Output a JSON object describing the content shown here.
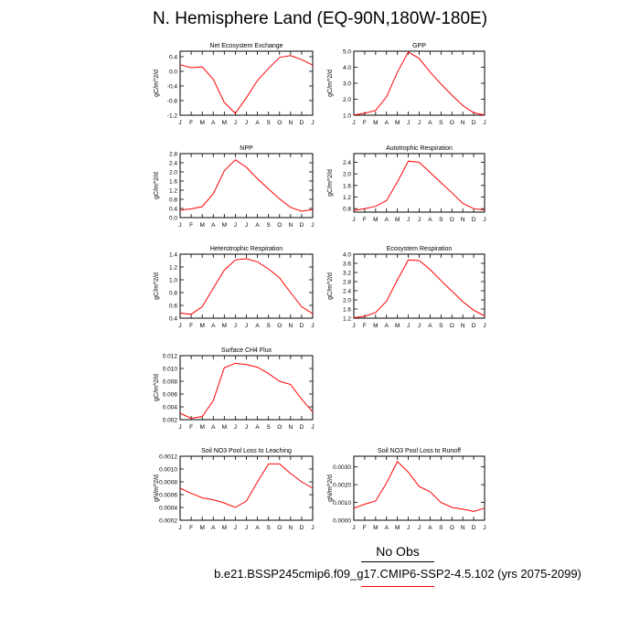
{
  "title": "N. Hemisphere Land (EQ-90N,180W-180E)",
  "legend": {
    "obs_label": "No Obs",
    "run_label": "b.e21.BSSP245cmip6.f09_g17.CMIP6-SSP2-4.5.102 (yrs 2075-2099)",
    "line_color": "#ff0000"
  },
  "chart_data": [
    {
      "type": "line",
      "title": "Net Ecosystem Exchange",
      "ylabel": "gC/m^2/d",
      "x": [
        "J",
        "F",
        "M",
        "A",
        "M",
        "J",
        "J",
        "A",
        "S",
        "O",
        "N",
        "D",
        "J"
      ],
      "yticks": [
        0.4,
        0.0,
        -0.4,
        -0.8,
        -1.2
      ],
      "ylim": [
        -1.2,
        0.55
      ],
      "series": [
        {
          "values": [
            0.18,
            0.1,
            0.12,
            -0.22,
            -0.85,
            -1.15,
            -0.72,
            -0.25,
            0.08,
            0.38,
            0.43,
            0.32,
            0.17
          ]
        }
      ]
    },
    {
      "type": "line",
      "title": "GPP",
      "ylabel": "gC/m^2/d",
      "x": [
        "J",
        "F",
        "M",
        "A",
        "M",
        "J",
        "J",
        "A",
        "S",
        "O",
        "N",
        "D",
        "J"
      ],
      "yticks": [
        5.0,
        4.0,
        3.0,
        2.0,
        1.0
      ],
      "ylim": [
        1.0,
        5.0
      ],
      "series": [
        {
          "values": [
            1.02,
            1.12,
            1.3,
            2.15,
            3.7,
            4.95,
            4.55,
            3.7,
            2.95,
            2.25,
            1.6,
            1.15,
            1.02
          ]
        }
      ]
    },
    {
      "type": "line",
      "title": "NPP",
      "ylabel": "gC/m^2/d",
      "x": [
        "J",
        "F",
        "M",
        "A",
        "M",
        "J",
        "J",
        "A",
        "S",
        "O",
        "N",
        "D",
        "J"
      ],
      "yticks": [
        2.8,
        2.4,
        2.0,
        1.6,
        1.2,
        0.8,
        0.4,
        0.0
      ],
      "ylim": [
        0.0,
        2.8
      ],
      "series": [
        {
          "values": [
            0.33,
            0.38,
            0.48,
            1.05,
            2.05,
            2.53,
            2.2,
            1.7,
            1.25,
            0.82,
            0.45,
            0.28,
            0.35
          ]
        }
      ]
    },
    {
      "type": "line",
      "title": "Autotrophic Respiration",
      "ylabel": "gC/m^2/d",
      "x": [
        "J",
        "F",
        "M",
        "A",
        "M",
        "J",
        "J",
        "A",
        "S",
        "O",
        "N",
        "D",
        "J"
      ],
      "yticks": [
        2.4,
        2.0,
        1.6,
        1.2,
        0.8
      ],
      "ylim": [
        0.68,
        2.7
      ],
      "series": [
        {
          "values": [
            0.74,
            0.8,
            0.88,
            1.08,
            1.72,
            2.44,
            2.4,
            2.05,
            1.7,
            1.35,
            0.98,
            0.8,
            0.75
          ]
        }
      ]
    },
    {
      "type": "line",
      "title": "Heterotrophic Respiration",
      "ylabel": "gC/m^2/d",
      "x": [
        "J",
        "F",
        "M",
        "A",
        "M",
        "J",
        "J",
        "A",
        "S",
        "O",
        "N",
        "D",
        "J"
      ],
      "yticks": [
        1.4,
        1.2,
        1.0,
        0.8,
        0.6,
        0.4
      ],
      "ylim": [
        0.4,
        1.4
      ],
      "series": [
        {
          "values": [
            0.48,
            0.46,
            0.58,
            0.87,
            1.15,
            1.31,
            1.33,
            1.28,
            1.17,
            1.03,
            0.8,
            0.58,
            0.47
          ]
        }
      ]
    },
    {
      "type": "line",
      "title": "Ecosystem Respiration",
      "ylabel": "gC/m^2/d",
      "x": [
        "J",
        "F",
        "M",
        "A",
        "M",
        "J",
        "J",
        "A",
        "S",
        "O",
        "N",
        "D",
        "J"
      ],
      "yticks": [
        4.0,
        3.6,
        3.2,
        2.8,
        2.4,
        2.0,
        1.6,
        1.2
      ],
      "ylim": [
        1.2,
        4.0
      ],
      "series": [
        {
          "values": [
            1.22,
            1.28,
            1.45,
            1.95,
            2.88,
            3.75,
            3.72,
            3.33,
            2.85,
            2.38,
            1.92,
            1.55,
            1.3
          ]
        }
      ]
    },
    {
      "type": "line",
      "title": "Surface CH4 Flux",
      "ylabel": "gC/m^2/d",
      "x": [
        "J",
        "F",
        "M",
        "A",
        "M",
        "J",
        "J",
        "A",
        "S",
        "O",
        "N",
        "D",
        "J"
      ],
      "yticks": [
        0.012,
        0.01,
        0.008,
        0.006,
        0.004,
        0.002
      ],
      "ylim": [
        0.002,
        0.012
      ],
      "series": [
        {
          "values": [
            0.003,
            0.0022,
            0.0025,
            0.005,
            0.0101,
            0.0108,
            0.0106,
            0.0102,
            0.0092,
            0.008,
            0.0075,
            0.0052,
            0.0032
          ]
        }
      ]
    },
    {
      "type": "line",
      "title": "Soil NO3 Pool Loss to Leaching",
      "ylabel": "gN/m^2/d",
      "x": [
        "J",
        "F",
        "M",
        "A",
        "M",
        "J",
        "J",
        "A",
        "S",
        "O",
        "N",
        "D",
        "J"
      ],
      "yticks": [
        0.0012,
        0.001,
        0.0008,
        0.0006,
        0.0004,
        0.0002
      ],
      "ylim": [
        0.0002,
        0.0012
      ],
      "series": [
        {
          "values": [
            0.0007,
            0.00062,
            0.00055,
            0.00052,
            0.00047,
            0.0004,
            0.0005,
            0.0008,
            0.00108,
            0.00108,
            0.00093,
            0.0008,
            0.0007
          ]
        }
      ]
    },
    {
      "type": "line",
      "title": "Soil NO3 Pool Loss to Runoff",
      "ylabel": "gN/m^2/d",
      "x": [
        "J",
        "F",
        "M",
        "A",
        "M",
        "J",
        "J",
        "A",
        "S",
        "O",
        "N",
        "D",
        "J"
      ],
      "yticks": [
        0.003,
        0.002,
        0.001,
        0.0
      ],
      "ylim": [
        0.0,
        0.0036
      ],
      "series": [
        {
          "values": [
            0.00068,
            0.0009,
            0.00108,
            0.0021,
            0.0033,
            0.0027,
            0.0019,
            0.0016,
            0.001,
            0.00072,
            0.00062,
            0.0005,
            0.00068
          ]
        }
      ]
    }
  ]
}
